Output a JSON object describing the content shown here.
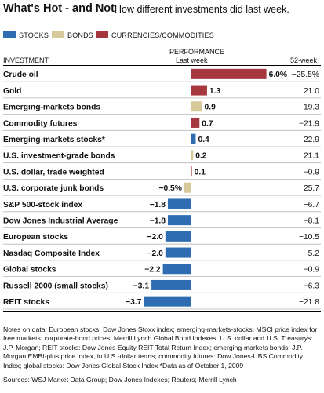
{
  "header": {
    "title": "What's Hot - and Not",
    "subtitle": "How different investments did last week."
  },
  "legend": [
    {
      "label": "STOCKS",
      "color": "#2f6db3"
    },
    {
      "label": "BONDS",
      "color": "#d7c89a"
    },
    {
      "label": "CURRENCIES/COMMODITIES",
      "color": "#a6373f"
    }
  ],
  "columns": {
    "investment": "INVESTMENT",
    "performance": "PERFORMANCE",
    "last_week": "Last week",
    "week52": "52-week"
  },
  "chart_data": {
    "type": "bar",
    "title": "What's Hot - and Not",
    "subtitle": "How different investments did last week.",
    "categories": [
      "Crude oil",
      "Gold",
      "Emerging-markets bonds",
      "Commodity futures",
      "Emerging-markets stocks*",
      "U.S. investment-grade bonds",
      "U.S. dollar, trade weighted",
      "U.S. corporate junk bonds",
      "S&P 500-stock index",
      "Dow Jones Industrial Average",
      "European stocks",
      "Nasdaq Composite Index",
      "Global stocks",
      "Russell 2000 (small stocks)",
      "REIT stocks"
    ],
    "values": [
      6.0,
      1.3,
      0.9,
      0.7,
      0.4,
      0.2,
      0.1,
      -0.5,
      -1.8,
      -1.8,
      -2.0,
      -2.0,
      -2.2,
      -3.1,
      -3.7
    ],
    "value_labels": [
      "6.0%",
      "1.3",
      "0.9",
      "0.7",
      "0.4",
      "0.2",
      "0.1",
      "−0.5%",
      "−1.8",
      "−1.8",
      "−2.0",
      "−2.0",
      "−2.2",
      "−3.1",
      "−3.7"
    ],
    "groups": [
      "commodity",
      "commodity",
      "bond",
      "commodity",
      "stock",
      "bond",
      "commodity",
      "bond",
      "stock",
      "stock",
      "stock",
      "stock",
      "stock",
      "stock",
      "stock"
    ],
    "week52": [
      "−25.5%",
      "21.0",
      "19.3",
      "−21.9",
      "22.9",
      "21.1",
      "−0.9",
      "25.7",
      "−6.7",
      "−8.1",
      "−10.5",
      "5.2",
      "−0.9",
      "−6.3",
      "−21.8"
    ],
    "bold_labels": [
      true,
      true,
      true,
      true,
      true,
      true,
      true,
      true,
      true,
      true,
      true,
      true,
      true,
      true,
      true
    ]
  },
  "notes": "Notes on data: European stocks: Dow Jones Stoxx index; emerging-markets-stocks: MSCI price index for free markets; corporate-bond prices: Merrill Lynch Global Bond Indexes; U.S. dollar and U.S. Treasurys: J.P. Morgan; REIT stocks: Dow Jones Equity REIT Total Return Index; emerging-markets bonds: J.P. Morgan EMBI-plus price index, in U.S.-dollar terms; commodity futures: Dow Jones-UBS Commodity Index; global stocks: Dow Jones Global Stock Index  *Data as of October 1, 2009",
  "sources": "Sources: WSJ Market Data Group; Dow Jones Indexes; Reuters; Merrill Lynch"
}
